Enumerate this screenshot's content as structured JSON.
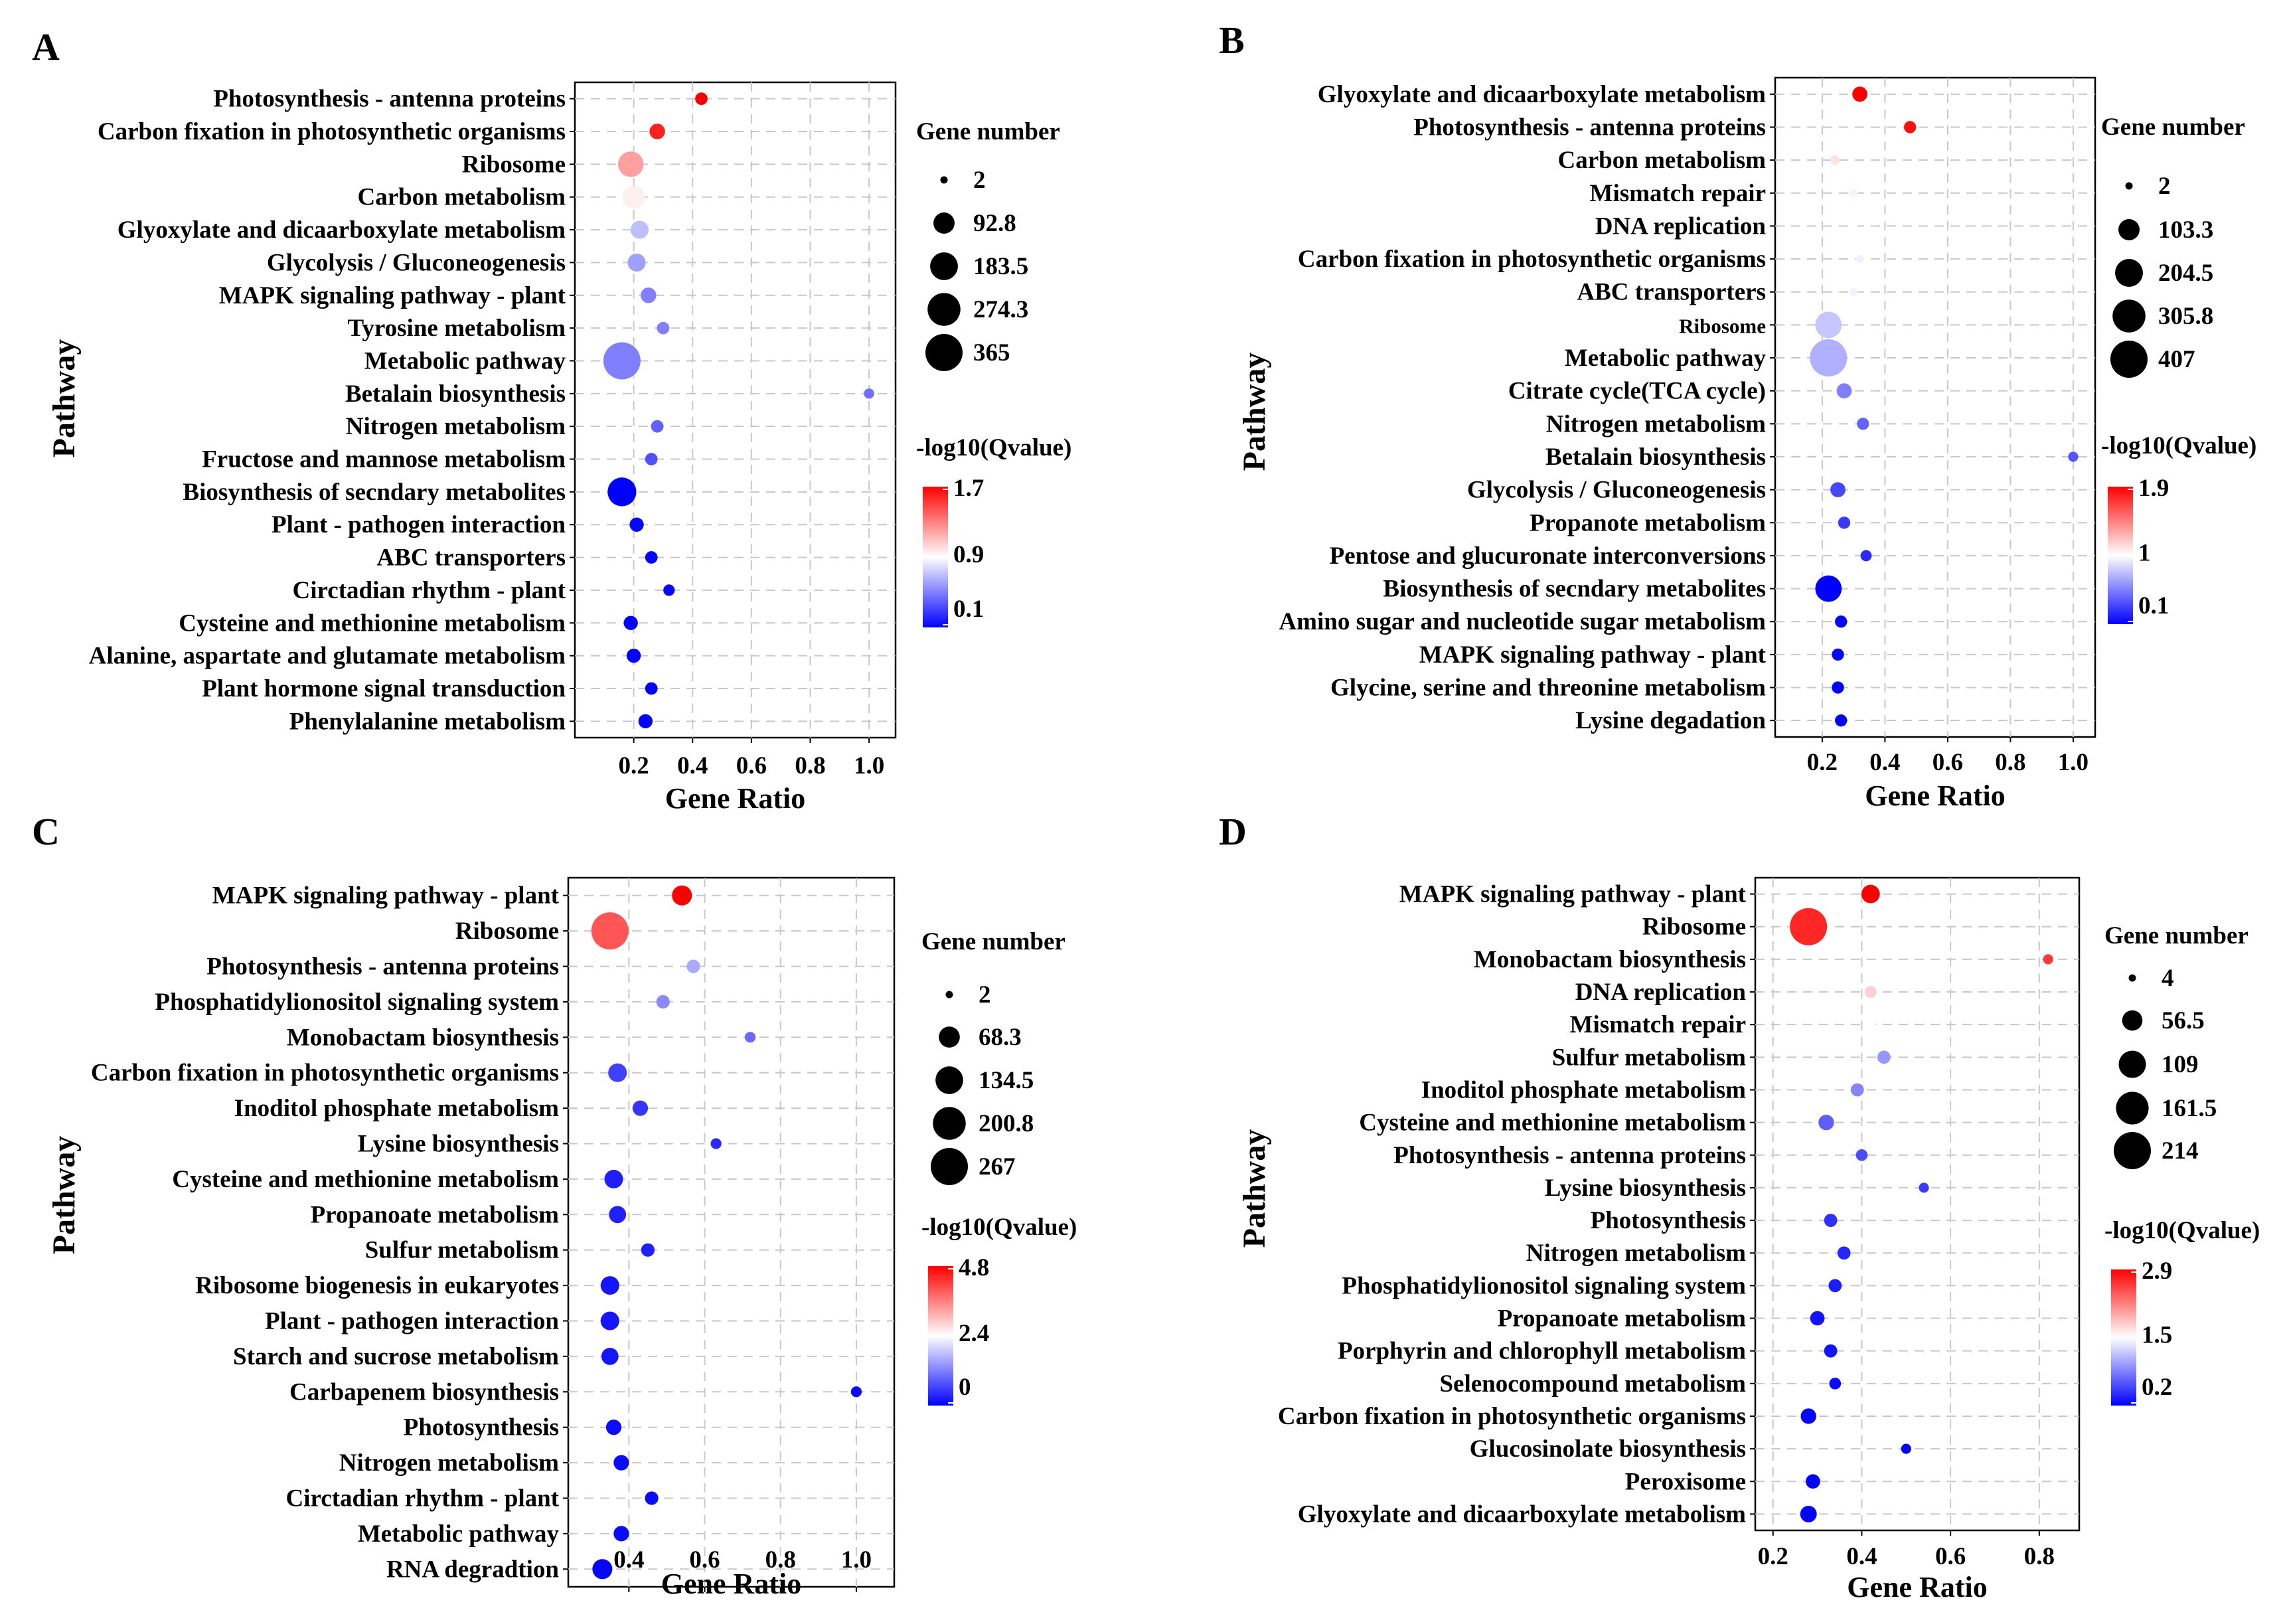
{
  "figure": {
    "panels": [
      {
        "letter": "A"
      },
      {
        "letter": "B"
      },
      {
        "letter": "C"
      },
      {
        "letter": "D"
      }
    ]
  },
  "chart_data": [
    {
      "panel": "A",
      "type": "scatter",
      "xlabel": "Gene Ratio",
      "ylabel": "Pathway",
      "xlim": [
        0,
        1.09
      ],
      "xticks": [
        "0.2",
        "0.4",
        "0.6",
        "0.8",
        "1.0"
      ],
      "xtick_values": [
        0.2,
        0.4,
        0.6,
        0.8,
        1.0
      ],
      "size_legend": {
        "title": "Gene number",
        "labels": [
          "2",
          "92.8",
          "183.5",
          "274.3",
          "365"
        ],
        "values": [
          2,
          92.8,
          183.5,
          274.3,
          365
        ]
      },
      "color_legend": {
        "title": "-log10(Qvalue)",
        "labels": [
          "1.7",
          "0.9",
          "0.1"
        ],
        "min": 0.1,
        "max": 1.7
      },
      "colors": {
        "low": "#0000ff",
        "mid": "#ffffff",
        "high": "#ff0000"
      },
      "pathways": [
        {
          "name": "Photosynthesis - antenna proteins",
          "x": 0.43,
          "count": 20,
          "q": 1.7
        },
        {
          "name": "Carbon fixation in photosynthetic organisms",
          "x": 0.28,
          "count": 40,
          "q": 1.6
        },
        {
          "name": "Ribosome",
          "x": 0.19,
          "count": 150,
          "q": 1.2
        },
        {
          "name": "Carbon metabolism",
          "x": 0.2,
          "count": 110,
          "q": 0.95
        },
        {
          "name": "Glyoxylate and dicaarboxylate metabolism",
          "x": 0.22,
          "count": 60,
          "q": 0.7
        },
        {
          "name": "Glycolysis / Gluconeogenesis",
          "x": 0.21,
          "count": 60,
          "q": 0.6
        },
        {
          "name": "MAPK signaling pathway - plant",
          "x": 0.25,
          "count": 40,
          "q": 0.5
        },
        {
          "name": "Tyrosine metabolism",
          "x": 0.3,
          "count": 20,
          "q": 0.5
        },
        {
          "name": "Metabolic pathway",
          "x": 0.16,
          "count": 365,
          "q": 0.5
        },
        {
          "name": "Betalain biosynthesis",
          "x": 1.0,
          "count": 10,
          "q": 0.45
        },
        {
          "name": "Nitrogen metabolism",
          "x": 0.28,
          "count": 20,
          "q": 0.4
        },
        {
          "name": "Fructose and mannose metabolism",
          "x": 0.26,
          "count": 20,
          "q": 0.35
        },
        {
          "name": "Biosynthesis of secndary metabolites",
          "x": 0.16,
          "count": 200,
          "q": 0.1
        },
        {
          "name": "Plant - pathogen interaction",
          "x": 0.21,
          "count": 30,
          "q": 0.12
        },
        {
          "name": "ABC transporters",
          "x": 0.26,
          "count": 20,
          "q": 0.12
        },
        {
          "name": "Circtadian rhythm - plant",
          "x": 0.32,
          "count": 15,
          "q": 0.12
        },
        {
          "name": "Cysteine and methionine metabolism",
          "x": 0.19,
          "count": 30,
          "q": 0.1
        },
        {
          "name": "Alanine, aspartate and glutamate metabolism",
          "x": 0.2,
          "count": 30,
          "q": 0.1
        },
        {
          "name": "Plant hormone signal transduction",
          "x": 0.26,
          "count": 20,
          "q": 0.1
        },
        {
          "name": "Phenylalanine metabolism",
          "x": 0.24,
          "count": 30,
          "q": 0.1
        }
      ]
    },
    {
      "panel": "B",
      "type": "scatter",
      "xlabel": "Gene Ratio",
      "ylabel": "Pathway",
      "xlim": [
        0.05,
        1.07
      ],
      "xticks": [
        "0.2",
        "0.4",
        "0.6",
        "0.8",
        "1.0"
      ],
      "xtick_values": [
        0.2,
        0.4,
        0.6,
        0.8,
        1.0
      ],
      "size_legend": {
        "title": "Gene number",
        "labels": [
          "2",
          "103.3",
          "204.5",
          "305.8",
          "407"
        ],
        "values": [
          2,
          103.3,
          204.5,
          305.8,
          407
        ]
      },
      "color_legend": {
        "title": "-log10(Qvalue)",
        "labels": [
          "1.9",
          "1",
          "0.1"
        ],
        "min": 0.1,
        "max": 1.9
      },
      "colors": {
        "low": "#0000ff",
        "mid": "#ffffff",
        "high": "#ff0000"
      },
      "pathways": [
        {
          "name": "Glyoxylate and dicaarboxylate metabolism",
          "x": 0.32,
          "count": 40,
          "q": 1.9
        },
        {
          "name": "Photosynthesis - antenna proteins",
          "x": 0.48,
          "count": 20,
          "q": 1.85
        },
        {
          "name": "Carbon metabolism",
          "x": 0.24,
          "count": 8,
          "q": 1.1
        },
        {
          "name": "Mismatch repair",
          "x": 0.3,
          "count": 4,
          "q": 1.05
        },
        {
          "name": "DNA replication",
          "x": 0.3,
          "count": 4,
          "q": 1.0
        },
        {
          "name": "Carbon fixation in photosynthetic organisms",
          "x": 0.32,
          "count": 4,
          "q": 0.95
        },
        {
          "name": "ABC transporters",
          "x": 0.3,
          "count": 4,
          "q": 0.95
        },
        {
          "name": "Ribosome",
          "x": 0.22,
          "count": 180,
          "q": 0.8
        },
        {
          "name": "Metabolic pathway",
          "x": 0.22,
          "count": 407,
          "q": 0.72
        },
        {
          "name": "Citrate cycle(TCA cycle)",
          "x": 0.27,
          "count": 40,
          "q": 0.55
        },
        {
          "name": "Nitrogen metabolism",
          "x": 0.33,
          "count": 20,
          "q": 0.45
        },
        {
          "name": "Betalain biosynthesis",
          "x": 1.0,
          "count": 10,
          "q": 0.4
        },
        {
          "name": "Glycolysis / Gluconeogenesis",
          "x": 0.25,
          "count": 40,
          "q": 0.35
        },
        {
          "name": "Propanote metabolism",
          "x": 0.27,
          "count": 20,
          "q": 0.3
        },
        {
          "name": "Pentose and glucuronate interconversions",
          "x": 0.34,
          "count": 15,
          "q": 0.25
        },
        {
          "name": "Biosynthesis of secndary metabolites",
          "x": 0.22,
          "count": 180,
          "q": 0.1
        },
        {
          "name": "Amino sugar and nucleotide sugar metabolism",
          "x": 0.26,
          "count": 20,
          "q": 0.12
        },
        {
          "name": "MAPK signaling pathway - plant",
          "x": 0.25,
          "count": 20,
          "q": 0.12
        },
        {
          "name": "Glycine, serine and threonine metabolism",
          "x": 0.25,
          "count": 20,
          "q": 0.1
        },
        {
          "name": "Lysine degadation",
          "x": 0.26,
          "count": 20,
          "q": 0.1
        }
      ]
    },
    {
      "panel": "C",
      "type": "scatter",
      "xlabel": "Gene Ratio",
      "ylabel": "Pathway",
      "xlim": [
        0.24,
        1.1
      ],
      "xticks": [
        "0.4",
        "0.6",
        "0.8",
        "1.0"
      ],
      "xtick_values": [
        0.4,
        0.6,
        0.8,
        1.0
      ],
      "size_legend": {
        "title": "Gene number",
        "labels": [
          "2",
          "68.3",
          "134.5",
          "200.8",
          "267"
        ],
        "values": [
          2,
          68.3,
          134.5,
          200.8,
          267
        ]
      },
      "color_legend": {
        "title": "-log10(Qvalue)",
        "labels": [
          "4.8",
          "2.4",
          "0"
        ],
        "min": 0,
        "max": 4.8
      },
      "colors": {
        "low": "#0000ff",
        "mid": "#ffffff",
        "high": "#ff0000"
      },
      "pathways": [
        {
          "name": "MAPK signaling pathway - plant",
          "x": 0.54,
          "count": 60,
          "q": 4.8
        },
        {
          "name": "Ribosome",
          "x": 0.35,
          "count": 267,
          "q": 4.0
        },
        {
          "name": "Photosynthesis - antenna proteins",
          "x": 0.57,
          "count": 20,
          "q": 1.6
        },
        {
          "name": "Phosphatidylionositol signaling system",
          "x": 0.49,
          "count": 20,
          "q": 1.3
        },
        {
          "name": "Monobactam biosynthesis",
          "x": 0.72,
          "count": 10,
          "q": 1.0
        },
        {
          "name": "Carbon fixation in photosynthetic organisms",
          "x": 0.37,
          "count": 50,
          "q": 0.6
        },
        {
          "name": "Inoditol phosphate metabolism",
          "x": 0.43,
          "count": 30,
          "q": 0.5
        },
        {
          "name": "Lysine biosynthesis",
          "x": 0.63,
          "count": 10,
          "q": 0.4
        },
        {
          "name": "Cysteine and methionine metabolism",
          "x": 0.36,
          "count": 50,
          "q": 0.3
        },
        {
          "name": "Propanoate metabolism",
          "x": 0.37,
          "count": 40,
          "q": 0.3
        },
        {
          "name": "Sulfur metabolism",
          "x": 0.45,
          "count": 20,
          "q": 0.3
        },
        {
          "name": "Ribosome biogenesis in eukaryotes",
          "x": 0.35,
          "count": 50,
          "q": 0.2
        },
        {
          "name": "Plant - pathogen interaction",
          "x": 0.35,
          "count": 50,
          "q": 0.2
        },
        {
          "name": "Starch and sucrose metabolism",
          "x": 0.35,
          "count": 40,
          "q": 0.2
        },
        {
          "name": "Carbapenem biosynthesis",
          "x": 1.0,
          "count": 10,
          "q": 0.1
        },
        {
          "name": "Photosynthesis",
          "x": 0.36,
          "count": 30,
          "q": 0.1
        },
        {
          "name": "Nitrogen metabolism",
          "x": 0.38,
          "count": 30,
          "q": 0.1
        },
        {
          "name": "Circtadian rhythm - plant",
          "x": 0.46,
          "count": 20,
          "q": 0.1
        },
        {
          "name": "Metabolic pathway",
          "x": 0.38,
          "count": 30,
          "q": 0.1
        },
        {
          "name": "RNA degradtion",
          "x": 0.33,
          "count": 60,
          "q": 0.05
        }
      ]
    },
    {
      "panel": "D",
      "type": "scatter",
      "xlabel": "Gene Ratio",
      "ylabel": "Pathway",
      "xlim": [
        0.16,
        0.89
      ],
      "xticks": [
        "0.2",
        "0.4",
        "0.6",
        "0.8"
      ],
      "xtick_values": [
        0.2,
        0.4,
        0.6,
        0.8
      ],
      "size_legend": {
        "title": "Gene number",
        "labels": [
          "4",
          "56.5",
          "109",
          "161.5",
          "214"
        ],
        "values": [
          4,
          56.5,
          109,
          161.5,
          214
        ]
      },
      "color_legend": {
        "title": "-log10(Qvalue)",
        "labels": [
          "2.9",
          "1.5",
          "0.2"
        ],
        "min": 0.2,
        "max": 2.9
      },
      "colors": {
        "low": "#0000ff",
        "mid": "#ffffff",
        "high": "#ff0000"
      },
      "pathways": [
        {
          "name": "MAPK signaling pathway - plant",
          "x": 0.42,
          "count": 45,
          "q": 2.9
        },
        {
          "name": "Ribosome",
          "x": 0.28,
          "count": 214,
          "q": 2.7
        },
        {
          "name": "Monobactam biosynthesis",
          "x": 0.82,
          "count": 10,
          "q": 2.6
        },
        {
          "name": "DNA replication",
          "x": 0.42,
          "count": 15,
          "q": 1.8
        },
        {
          "name": "Mismatch repair",
          "x": 0.42,
          "count": 8,
          "q": 1.55
        },
        {
          "name": "Sulfur metabolism",
          "x": 0.45,
          "count": 20,
          "q": 1.0
        },
        {
          "name": "Inoditol phosphate metabolism",
          "x": 0.39,
          "count": 20,
          "q": 0.9
        },
        {
          "name": "Cysteine and methionine metabolism",
          "x": 0.32,
          "count": 30,
          "q": 0.7
        },
        {
          "name": "Photosynthesis - antenna proteins",
          "x": 0.4,
          "count": 15,
          "q": 0.6
        },
        {
          "name": "Lysine biosynthesis",
          "x": 0.54,
          "count": 10,
          "q": 0.5
        },
        {
          "name": "Photosynthesis",
          "x": 0.33,
          "count": 20,
          "q": 0.45
        },
        {
          "name": "Nitrogen metabolism",
          "x": 0.36,
          "count": 20,
          "q": 0.4
        },
        {
          "name": "Phosphatidylionositol signaling system",
          "x": 0.34,
          "count": 20,
          "q": 0.35
        },
        {
          "name": "Propanoate metabolism",
          "x": 0.3,
          "count": 25,
          "q": 0.3
        },
        {
          "name": "Porphyrin and chlorophyll metabolism",
          "x": 0.33,
          "count": 20,
          "q": 0.3
        },
        {
          "name": "Selenocompound metabolism",
          "x": 0.34,
          "count": 15,
          "q": 0.25
        },
        {
          "name": "Carbon fixation in photosynthetic organisms",
          "x": 0.28,
          "count": 30,
          "q": 0.22
        },
        {
          "name": "Glucosinolate biosynthesis",
          "x": 0.5,
          "count": 10,
          "q": 0.2
        },
        {
          "name": "Peroxisome",
          "x": 0.29,
          "count": 25,
          "q": 0.2
        },
        {
          "name": "Glyoxylate and dicaarboxylate metabolism",
          "x": 0.28,
          "count": 35,
          "q": 0.2
        }
      ]
    }
  ]
}
